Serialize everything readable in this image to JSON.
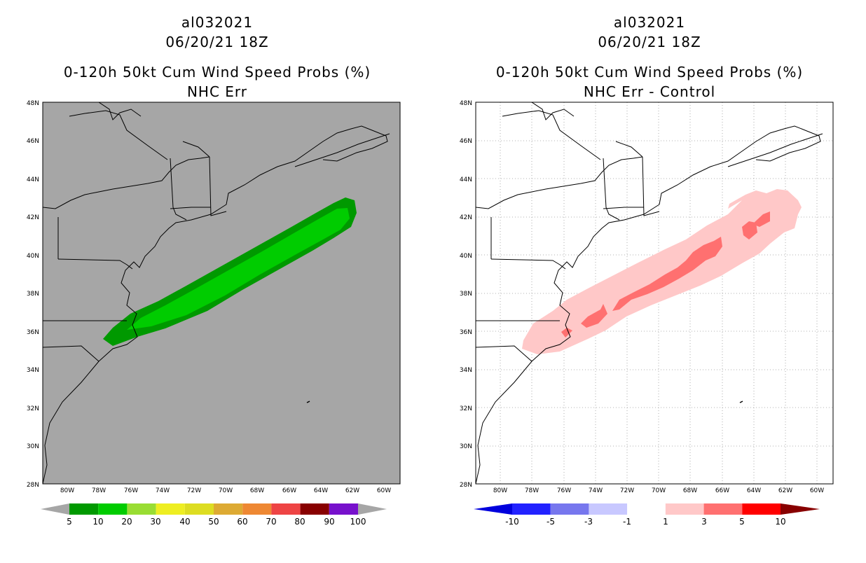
{
  "left_panel": {
    "storm_id": "al032021",
    "datetime": "06/20/21 18Z",
    "title": "0-120h 50kt Cum Wind Speed Probs (%)",
    "subtitle": "NHC Err",
    "background_color": "#a6a6a6",
    "colorbar": {
      "labels": [
        "5",
        "10",
        "20",
        "30",
        "40",
        "50",
        "60",
        "70",
        "80",
        "90",
        "100"
      ],
      "colors": [
        "#009900",
        "#00cc00",
        "#99dd33",
        "#eeee22",
        "#dddd22",
        "#ddaa33",
        "#ee8833",
        "#ee4444",
        "#880000",
        "#7711cc"
      ]
    }
  },
  "right_panel": {
    "storm_id": "al032021",
    "datetime": "06/20/21 18Z",
    "title": "0-120h 50kt Cum Wind Speed Probs (%)",
    "subtitle": "NHC Err - Control",
    "background_color": "#ffffff",
    "colorbar": {
      "labels": [
        "-10",
        "-5",
        "-3",
        "-1",
        "1",
        "3",
        "5",
        "10"
      ],
      "colors": [
        "#0000dd",
        "#2222ff",
        "#7777ee",
        "#c8c8ff",
        "#ffffff",
        "#ffc8c8",
        "#ff7070",
        "#ff0000",
        "#880000"
      ]
    }
  },
  "axes": {
    "lat_labels": [
      "48N",
      "46N",
      "44N",
      "42N",
      "40N",
      "38N",
      "36N",
      "34N",
      "32N",
      "30N",
      "28N"
    ],
    "lon_labels": [
      "80W",
      "78W",
      "76W",
      "74W",
      "72W",
      "70W",
      "68W",
      "66W",
      "64W",
      "62W",
      "60W"
    ]
  }
}
